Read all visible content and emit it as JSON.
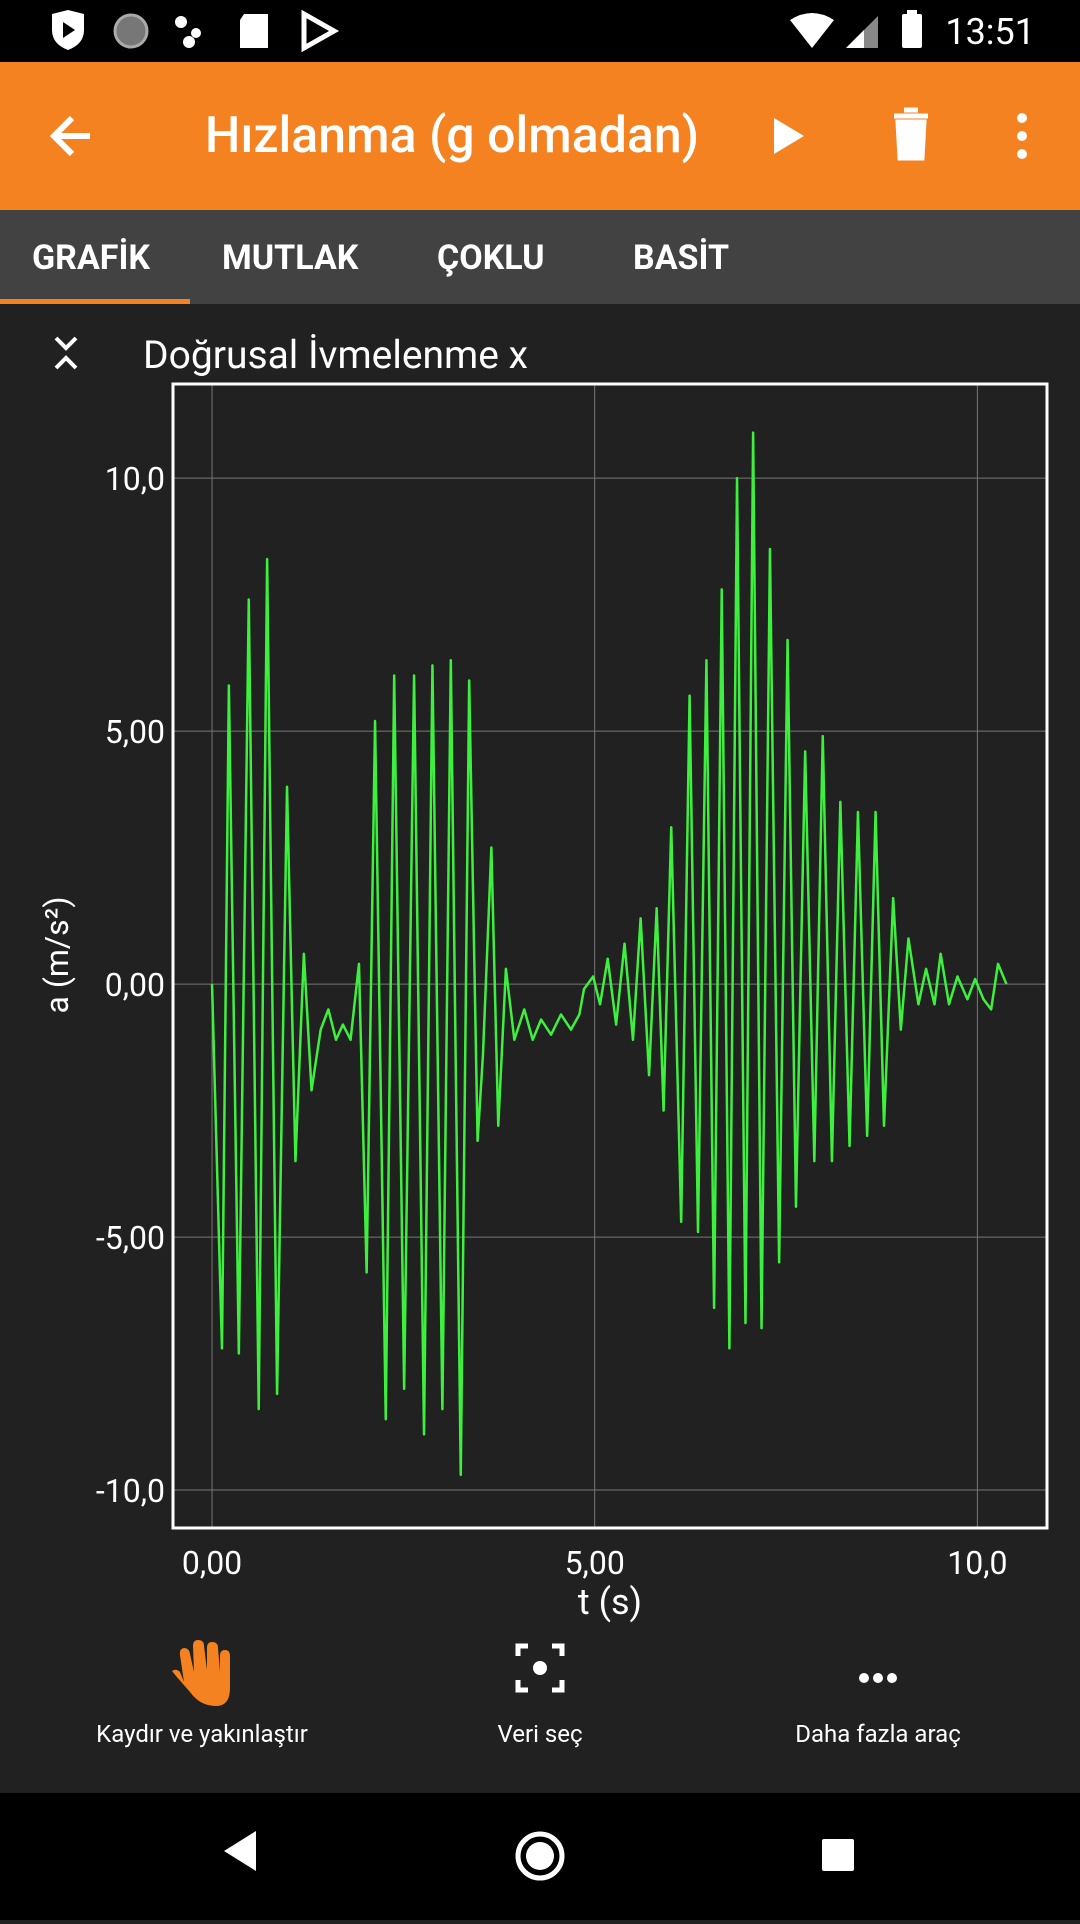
{
  "status_bar": {
    "time": "13:51"
  },
  "toolbar": {
    "title": "Hızlanma (g olmadan)"
  },
  "tabs": [
    "GRAFİK",
    "MUTLAK",
    "ÇOKLU",
    "BASİT"
  ],
  "chart_data": {
    "type": "line",
    "title": "Doğrusal İvmelenme x",
    "x_label": "t (s)",
    "y_label": "a (m/s²)",
    "x": [
      0,
      0.13,
      0.22,
      0.35,
      0.48,
      0.61,
      0.72,
      0.85,
      0.98,
      1.09,
      1.2,
      1.3,
      1.42,
      1.52,
      1.62,
      1.71,
      1.81,
      1.92,
      2.02,
      2.13,
      2.27,
      2.38,
      2.51,
      2.64,
      2.77,
      2.88,
      3.01,
      3.12,
      3.25,
      3.36,
      3.47,
      3.54,
      3.65,
      3.74,
      3.84,
      3.95,
      4.08,
      4.19,
      4.3,
      4.43,
      4.56,
      4.69,
      4.8,
      4.86,
      4.98,
      5.07,
      5.17,
      5.28,
      5.39,
      5.5,
      5.6,
      5.71,
      5.81,
      5.9,
      6.0,
      6.13,
      6.24,
      6.35,
      6.46,
      6.56,
      6.66,
      6.76,
      6.86,
      6.97,
      7.07,
      7.18,
      7.29,
      7.41,
      7.52,
      7.63,
      7.75,
      7.87,
      7.98,
      8.1,
      8.21,
      8.33,
      8.44,
      8.56,
      8.67,
      8.78,
      8.9,
      9.0,
      9.1,
      9.23,
      9.33,
      9.44,
      9.52,
      9.63,
      9.74,
      9.87,
      9.97,
      10.08,
      10.18,
      10.27,
      10.38
    ],
    "series": [
      {
        "color": "#3ef03e",
        "values": [
          0,
          -7.2,
          5.9,
          -7.3,
          7.6,
          -8.4,
          8.4,
          -8.1,
          3.9,
          -3.5,
          0.6,
          -2.1,
          -0.9,
          -0.5,
          -1.1,
          -0.8,
          -1.1,
          0.4,
          -5.7,
          5.2,
          -8.6,
          6.1,
          -8.0,
          6.1,
          -8.9,
          6.3,
          -8.4,
          6.4,
          -9.7,
          6.0,
          -3.1,
          -1.4,
          2.7,
          -2.8,
          0.3,
          -1.1,
          -0.5,
          -1.1,
          -0.7,
          -1.0,
          -0.6,
          -0.9,
          -0.6,
          -0.1,
          0.15,
          -0.4,
          0.5,
          -0.8,
          0.8,
          -1.1,
          1.3,
          -1.8,
          1.5,
          -2.5,
          3.1,
          -4.7,
          5.7,
          -4.9,
          6.4,
          -6.4,
          7.8,
          -7.2,
          10.0,
          -6.7,
          10.9,
          -6.8,
          8.6,
          -5.5,
          6.8,
          -4.4,
          4.6,
          -3.5,
          4.9,
          -3.5,
          3.6,
          -3.2,
          3.4,
          -3.0,
          3.4,
          -2.8,
          1.7,
          -0.9,
          0.9,
          -0.4,
          0.3,
          -0.4,
          0.6,
          -0.4,
          0.15,
          -0.3,
          0.1,
          -0.3,
          -0.5,
          0.4,
          0
        ]
      }
    ],
    "xlim": [
      -0.51,
      10.91
    ],
    "ylim": [
      -10.75,
      11.86
    ],
    "xticks": [
      {
        "value": 0,
        "label": "0,00"
      },
      {
        "value": 5,
        "label": "5,00"
      },
      {
        "value": 10,
        "label": "10,0"
      }
    ],
    "yticks": [
      {
        "value": -10,
        "label": "-10,0"
      },
      {
        "value": -5,
        "label": "-5,00"
      },
      {
        "value": 0,
        "label": "0,00"
      },
      {
        "value": 5,
        "label": "5,00"
      },
      {
        "value": 10,
        "label": "10,0"
      }
    ],
    "grid": true
  },
  "tools": [
    "Kaydır ve yakınlaştır",
    "Veri seç",
    "Daha fazla araç"
  ]
}
